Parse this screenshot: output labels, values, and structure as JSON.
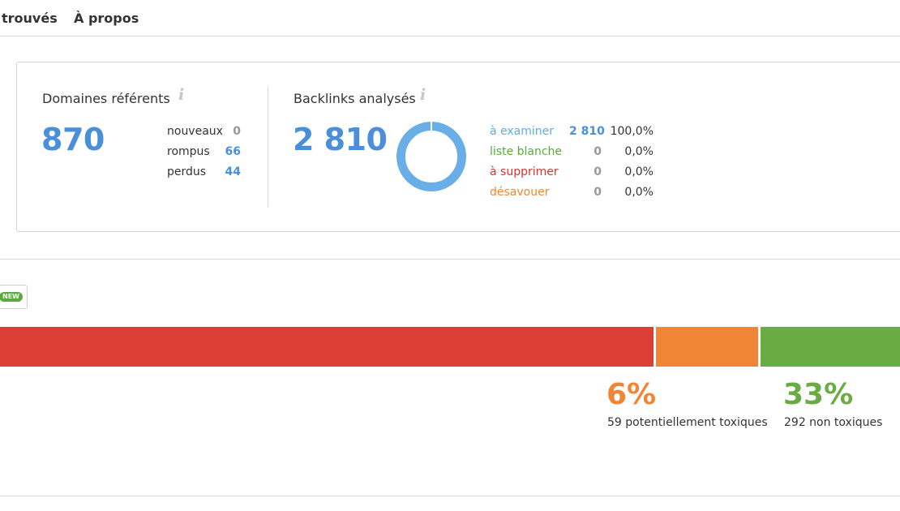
{
  "nav": {
    "tabs": [
      {
        "label": "trouvés"
      },
      {
        "label": "À propos"
      }
    ]
  },
  "referring_domains": {
    "title": "Domaines référents",
    "info_icon": "info-icon",
    "total": "870",
    "rows": [
      {
        "label": "nouveaux",
        "value": "0",
        "color": "#999999"
      },
      {
        "label": "rompus",
        "value": "66",
        "color": "#4a8fd8"
      },
      {
        "label": "perdus",
        "value": "44",
        "color": "#4a8fd8"
      }
    ]
  },
  "backlinks": {
    "title": "Backlinks analysés",
    "info_icon": "info-icon",
    "total": "2 810",
    "donut_color": "#6aaee8",
    "rows": [
      {
        "label": "à examiner",
        "value": "2 810",
        "pct": "100,0%",
        "color": "#5aaee6",
        "value_color": "#4a8fd8",
        "share": 1.0
      },
      {
        "label": "liste blanche",
        "value": "0",
        "pct": "0,0%",
        "color": "#5aaa3e",
        "value_color": "#999999",
        "share": 0.0
      },
      {
        "label": "à supprimer",
        "value": "0",
        "pct": "0,0%",
        "color": "#d9332c",
        "value_color": "#999999",
        "share": 0.0
      },
      {
        "label": "désavouer",
        "value": "0",
        "pct": "0,0%",
        "color": "#ee8833",
        "value_color": "#999999",
        "share": 0.0
      }
    ]
  },
  "new_badge": {
    "label": "NEW",
    "color": "#5aaa3e"
  },
  "toxicity": {
    "colors": {
      "toxic": "#db3f36",
      "potential": "#f08535",
      "non_toxic": "#6aac44"
    },
    "potential": {
      "pct": "6%",
      "desc": "59 potentiellement toxiques"
    },
    "non_toxic": {
      "pct": "33%",
      "desc": "292 non toxiques"
    }
  }
}
